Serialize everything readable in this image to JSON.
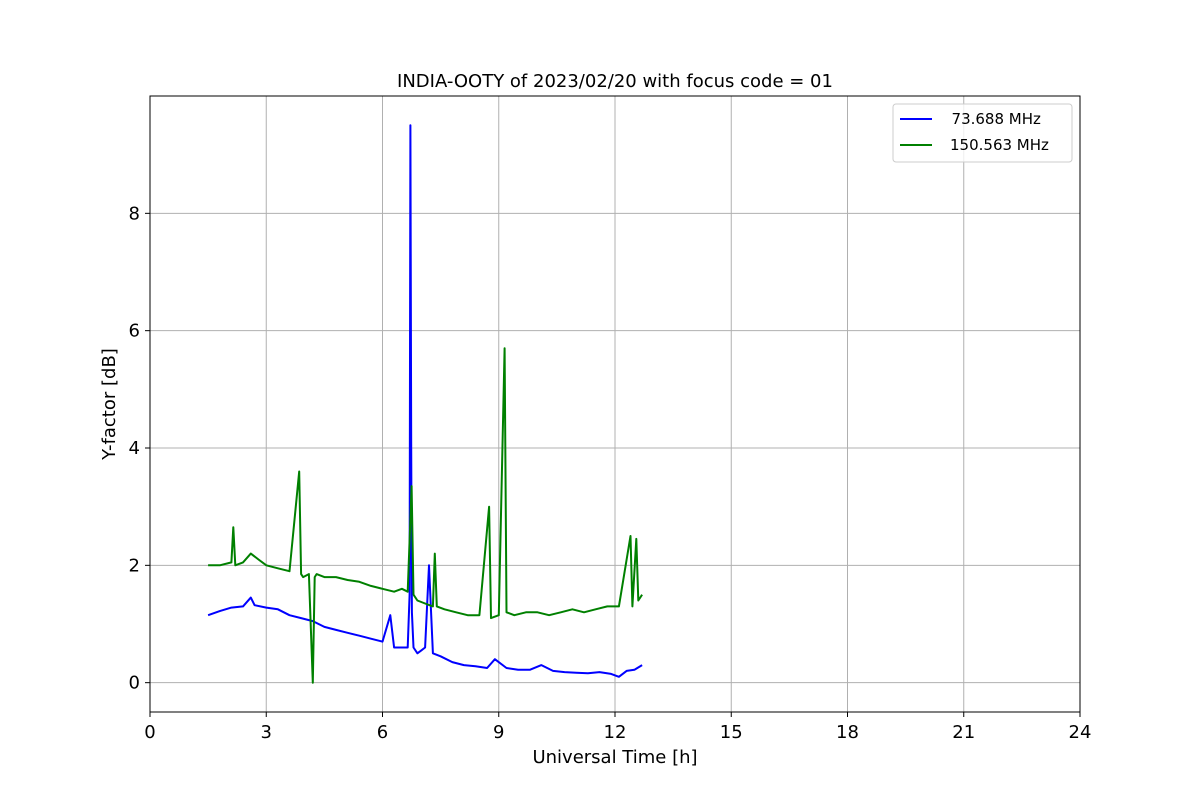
{
  "chart_data": {
    "type": "line",
    "title": "INDIA-OOTY of 2023/02/20 with focus code = 01",
    "xlabel": "Universal Time [h]",
    "ylabel": "Y-factor [dB]",
    "xlim": [
      0,
      24
    ],
    "ylim": [
      -0.5,
      10
    ],
    "xticks": [
      0,
      3,
      6,
      9,
      12,
      15,
      18,
      21,
      24
    ],
    "yticks": [
      0,
      2,
      4,
      6,
      8
    ],
    "grid": true,
    "legend_position": "top-right",
    "series": [
      {
        "name": "  73.688 MHz",
        "color": "#0000ff",
        "x": [
          1.5,
          1.8,
          2.1,
          2.4,
          2.6,
          2.7,
          3.0,
          3.3,
          3.6,
          3.9,
          4.2,
          4.5,
          4.8,
          5.1,
          5.4,
          5.7,
          6.0,
          6.2,
          6.3,
          6.5,
          6.65,
          6.7,
          6.72,
          6.74,
          6.76,
          6.8,
          6.9,
          7.0,
          7.1,
          7.2,
          7.3,
          7.5,
          7.8,
          8.1,
          8.4,
          8.7,
          8.9,
          9.2,
          9.5,
          9.8,
          10.1,
          10.4,
          10.7,
          11.0,
          11.3,
          11.6,
          11.9,
          12.1,
          12.3,
          12.5,
          12.7
        ],
        "y": [
          1.15,
          1.22,
          1.28,
          1.3,
          1.45,
          1.32,
          1.28,
          1.25,
          1.15,
          1.1,
          1.05,
          0.95,
          0.9,
          0.85,
          0.8,
          0.75,
          0.7,
          1.15,
          0.6,
          0.6,
          0.6,
          1.5,
          9.5,
          4.0,
          1.2,
          0.6,
          0.5,
          0.55,
          0.6,
          2.0,
          0.5,
          0.45,
          0.35,
          0.3,
          0.28,
          0.25,
          0.4,
          0.25,
          0.22,
          0.22,
          0.3,
          0.2,
          0.18,
          0.17,
          0.16,
          0.18,
          0.15,
          0.1,
          0.2,
          0.22,
          0.3
        ]
      },
      {
        "name": "150.563 MHz",
        "color": "#008000",
        "x": [
          1.5,
          1.8,
          2.1,
          2.15,
          2.2,
          2.4,
          2.6,
          2.8,
          3.0,
          3.3,
          3.6,
          3.85,
          3.9,
          3.95,
          4.1,
          4.2,
          4.25,
          4.3,
          4.5,
          4.8,
          5.1,
          5.4,
          5.7,
          6.0,
          6.3,
          6.5,
          6.65,
          6.75,
          6.8,
          6.9,
          7.1,
          7.3,
          7.35,
          7.4,
          7.6,
          7.9,
          8.2,
          8.5,
          8.75,
          8.8,
          9.0,
          9.15,
          9.2,
          9.4,
          9.7,
          10.0,
          10.3,
          10.6,
          10.9,
          11.2,
          11.5,
          11.8,
          12.1,
          12.4,
          12.45,
          12.55,
          12.6,
          12.7
        ],
        "y": [
          2.0,
          2.0,
          2.05,
          2.65,
          2.0,
          2.05,
          2.2,
          2.1,
          2.0,
          1.95,
          1.9,
          3.6,
          1.85,
          1.8,
          1.85,
          0.0,
          1.8,
          1.85,
          1.8,
          1.8,
          1.75,
          1.72,
          1.65,
          1.6,
          1.55,
          1.6,
          1.55,
          3.35,
          1.5,
          1.4,
          1.35,
          1.3,
          2.2,
          1.3,
          1.25,
          1.2,
          1.15,
          1.15,
          3.0,
          1.1,
          1.15,
          5.7,
          1.2,
          1.15,
          1.2,
          1.2,
          1.15,
          1.2,
          1.25,
          1.2,
          1.25,
          1.3,
          1.3,
          2.5,
          1.3,
          2.45,
          1.4,
          1.5
        ]
      }
    ]
  }
}
